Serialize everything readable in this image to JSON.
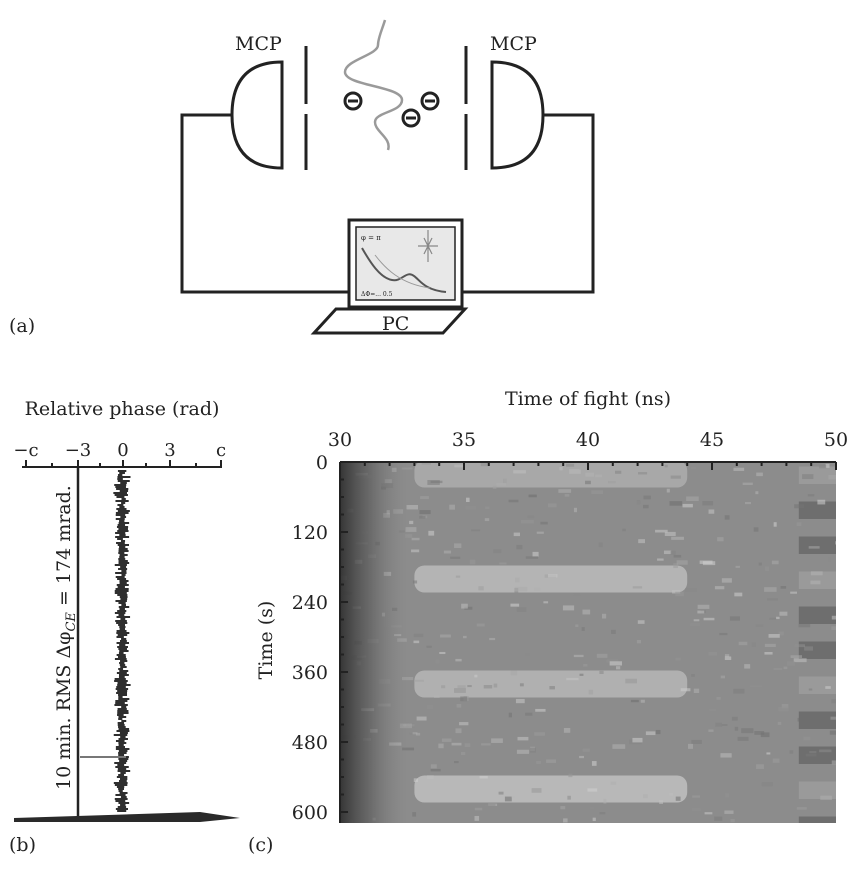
{
  "panel_a": {
    "label": "(a)",
    "mcp_left": "MCP",
    "mcp_right": "MCP",
    "pc": "PC",
    "screen_text_1": "φ = π",
    "screen_text_2": "ΔΦ=... 0.5"
  },
  "panel_b": {
    "label": "(b)",
    "title": "Relative phase (rad)",
    "ticks": [
      "−c",
      "−3",
      "0",
      "3",
      "c"
    ],
    "annotation": "10 min. RMS Δφ",
    "annotation_sub": "CE",
    "annotation_tail": " = 174 mrad."
  },
  "panel_c": {
    "label": "(c)",
    "x_title": "Time of fight (ns)",
    "y_title": "Time (s)",
    "x_ticks": [
      "30",
      "35",
      "40",
      "45",
      "50"
    ],
    "y_ticks": [
      "0",
      "120",
      "240",
      "360",
      "480",
      "600"
    ]
  },
  "colors": {
    "ink": "#222222",
    "heat_dark": "#3a3a3a",
    "heat_mid": "#8f8f8f",
    "heat_light": "#c2c2c2"
  },
  "chart_data": {
    "type": "heatmap",
    "xlabel": "Time of fight (ns)",
    "ylabel": "Time (s)",
    "xlim": [
      30,
      50
    ],
    "ylim": [
      0,
      620
    ],
    "y_axis_inverted": true,
    "x_ticks": [
      30,
      35,
      40,
      45,
      50
    ],
    "y_ticks": [
      0,
      120,
      240,
      360,
      480,
      600
    ],
    "rows_s": [
      0,
      60,
      120,
      180,
      240,
      300,
      360,
      420,
      480,
      540,
      600
    ],
    "row_brightness": [
      0.6,
      0.3,
      0.35,
      0.75,
      0.4,
      0.3,
      0.7,
      0.35,
      0.4,
      0.8,
      0.3
    ],
    "colormap": "grayscale"
  }
}
